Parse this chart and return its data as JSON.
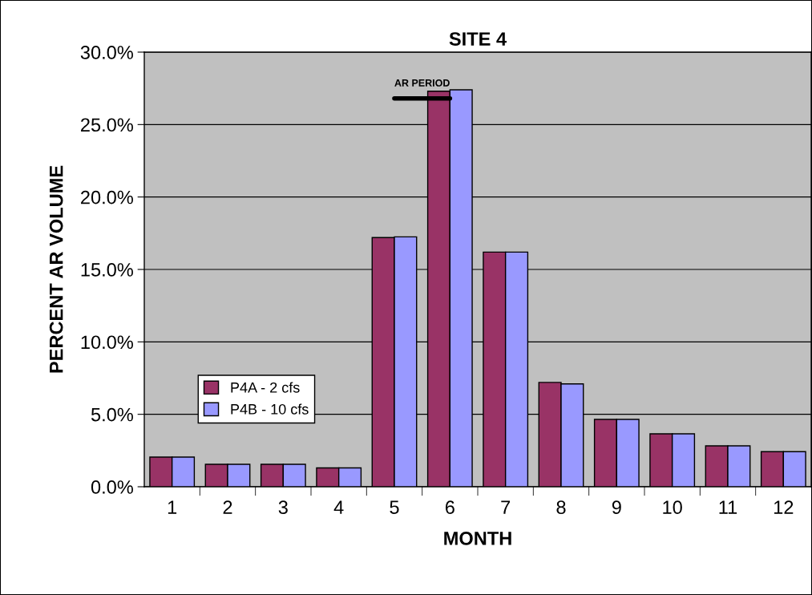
{
  "chart_data": {
    "type": "bar",
    "title": "SITE 4",
    "xlabel": "MONTH",
    "ylabel": "PERCENT AR VOLUME",
    "categories": [
      "1",
      "2",
      "3",
      "4",
      "5",
      "6",
      "7",
      "8",
      "9",
      "10",
      "11",
      "12"
    ],
    "series": [
      {
        "name": "P4A - 2 cfs",
        "color": "#993366",
        "values": [
          2.05,
          1.55,
          1.55,
          1.3,
          17.2,
          27.3,
          16.2,
          7.2,
          4.65,
          3.65,
          2.82,
          2.42
        ]
      },
      {
        "name": "P4B - 10 cfs",
        "color": "#9999ff",
        "values": [
          2.05,
          1.55,
          1.55,
          1.3,
          17.25,
          27.4,
          16.2,
          7.1,
          4.65,
          3.65,
          2.82,
          2.42
        ]
      },
      {
        "name": "AR PERIOD",
        "type": "line",
        "color": "#000000",
        "x": [
          "5",
          "6"
        ],
        "values": [
          26.8,
          26.8
        ]
      }
    ],
    "ylim": [
      0,
      30
    ],
    "yticks": [
      {
        "value": 0,
        "label": "0.0%"
      },
      {
        "value": 5,
        "label": "5.0%"
      },
      {
        "value": 10,
        "label": "10.0%"
      },
      {
        "value": 15,
        "label": "15.0%"
      },
      {
        "value": 20,
        "label": "20.0%"
      },
      {
        "value": 25,
        "label": "25.0%"
      },
      {
        "value": 30,
        "label": "30.0%"
      }
    ],
    "grid": "y",
    "legend": "bottom left"
  }
}
